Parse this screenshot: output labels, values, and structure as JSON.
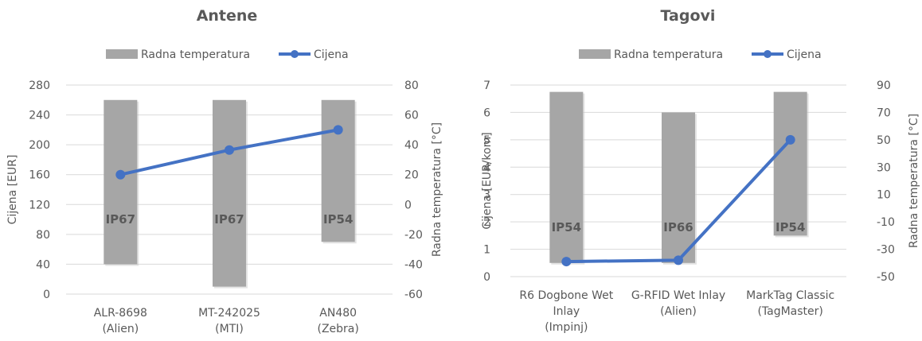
{
  "chart_data": [
    {
      "type": "bar",
      "title": "Antene",
      "legend": [
        "Radna temperatura",
        "Cijena"
      ],
      "legend_position": "top",
      "grid": true,
      "categories": [
        [
          "ALR-8698",
          "(Alien)"
        ],
        [
          "MT-242025",
          "(MTI)"
        ],
        [
          "AN480",
          "(Zebra)"
        ]
      ],
      "y_left": {
        "label": "Cijena [EUR]",
        "min": 0,
        "max": 280,
        "step": 40
      },
      "y_right": {
        "label": "Radna temperatura [°C]",
        "min": -60,
        "max": 80,
        "step": 20
      },
      "series": [
        {
          "name": "Radna temperatura",
          "kind": "floating-bar",
          "axis": "right",
          "color": "#a6a6a6",
          "ranges": [
            [
              -40,
              70
            ],
            [
              -55,
              70
            ],
            [
              -25,
              70
            ]
          ],
          "labels": [
            "IP67",
            "IP67",
            "IP54"
          ]
        },
        {
          "name": "Cijena",
          "kind": "line",
          "axis": "left",
          "color": "#4472c4",
          "values": [
            160,
            193,
            220
          ]
        }
      ]
    },
    {
      "type": "bar",
      "title": "Tagovi",
      "legend": [
        "Radna temperatura",
        "Cijena"
      ],
      "legend_position": "top",
      "grid": true,
      "categories": [
        [
          "R6 Dogbone Wet",
          "Inlay",
          "(Impinj)"
        ],
        [
          "G-RFID Wet Inlay",
          "(Alien)"
        ],
        [
          "MarkTag Classic",
          "(TagMaster)"
        ]
      ],
      "y_left": {
        "label": "Cijena [EUR/kom]",
        "min": 0,
        "max": 7,
        "step": 1
      },
      "y_right": {
        "label": "Radna temperatura [°C]",
        "min": -50,
        "max": 90,
        "step": 20
      },
      "series": [
        {
          "name": "Radna temperatura",
          "kind": "floating-bar",
          "axis": "right",
          "color": "#a6a6a6",
          "ranges": [
            [
              -40,
              85
            ],
            [
              -40,
              70
            ],
            [
              -20,
              85
            ]
          ],
          "labels": [
            "IP54",
            "IP66",
            "IP54"
          ]
        },
        {
          "name": "Cijena",
          "kind": "line",
          "axis": "left",
          "color": "#4472c4",
          "values": [
            0.55,
            0.6,
            5.0
          ]
        }
      ]
    }
  ]
}
